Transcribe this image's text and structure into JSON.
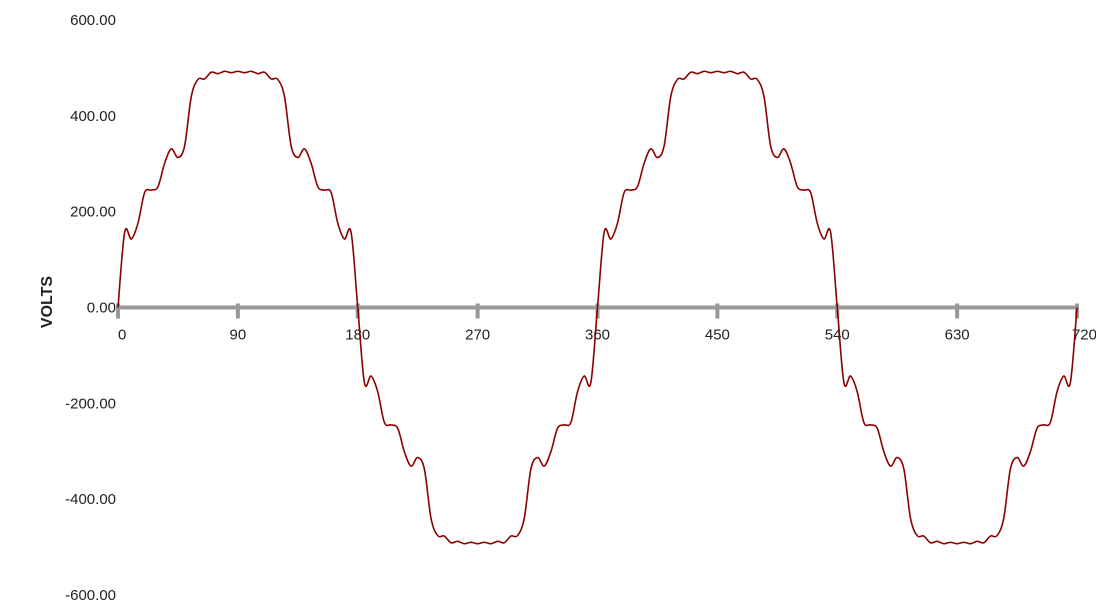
{
  "chart_data": {
    "type": "line",
    "title": "",
    "xlabel": "",
    "ylabel": "VOLTS",
    "xlim": [
      0,
      720
    ],
    "ylim": [
      -600,
      600
    ],
    "x_ticks": [
      "0",
      "90",
      "180",
      "270",
      "360",
      "450",
      "540",
      "630",
      "720"
    ],
    "y_ticks": [
      "600.00",
      "400.00",
      "200.00",
      "0.00",
      "-200.00",
      "-400.00",
      "-600.00"
    ],
    "grid": false,
    "legend": "none",
    "colors": {
      "series": "#8b0000",
      "axis": "#999999",
      "text": "#222222"
    },
    "series": [
      {
        "name": "",
        "x": [
          0,
          5,
          10,
          15,
          20,
          25,
          30,
          35,
          40,
          45,
          50,
          55,
          60,
          65,
          70,
          75,
          80,
          85,
          90,
          95,
          100,
          105,
          110,
          115,
          120,
          125,
          130,
          135,
          140,
          145,
          150,
          155,
          160,
          165,
          170,
          175,
          180,
          185,
          190,
          195,
          200,
          205,
          210,
          215,
          220,
          225,
          230,
          235,
          240,
          245,
          250,
          255,
          260,
          265,
          270,
          275,
          280,
          285,
          290,
          295,
          300,
          305,
          310,
          315,
          320,
          325,
          330,
          335,
          340,
          345,
          350,
          355,
          360,
          365,
          370,
          375,
          380,
          385,
          390,
          395,
          400,
          405,
          410,
          415,
          420,
          425,
          430,
          435,
          440,
          445,
          450,
          455,
          460,
          465,
          470,
          475,
          480,
          485,
          490,
          495,
          500,
          505,
          510,
          515,
          520,
          525,
          530,
          535,
          540,
          545,
          550,
          555,
          560,
          565,
          570,
          575,
          580,
          585,
          590,
          595,
          600,
          605,
          610,
          615,
          620,
          625,
          630,
          635,
          640,
          645,
          650,
          655,
          660,
          665,
          670,
          675,
          680,
          685,
          690,
          695,
          700,
          705,
          710,
          715,
          720
        ],
        "y": [
          0,
          157,
          143,
          176,
          240,
          245,
          252,
          301,
          331,
          313,
          337,
          440,
          476,
          477,
          491,
          488,
          493,
          490,
          493,
          490,
          493,
          488,
          491,
          477,
          476,
          440,
          337,
          313,
          331,
          301,
          252,
          245,
          240,
          176,
          143,
          157,
          0,
          -157,
          -143,
          -176,
          -240,
          -245,
          -252,
          -301,
          -331,
          -313,
          -337,
          -440,
          -476,
          -477,
          -491,
          -488,
          -493,
          -490,
          -493,
          -490,
          -493,
          -488,
          -491,
          -477,
          -476,
          -440,
          -337,
          -313,
          -331,
          -301,
          -252,
          -245,
          -240,
          -176,
          -143,
          -157,
          0,
          157,
          143,
          176,
          240,
          245,
          252,
          301,
          331,
          313,
          337,
          440,
          476,
          477,
          491,
          488,
          493,
          490,
          493,
          490,
          493,
          488,
          491,
          477,
          476,
          440,
          337,
          313,
          331,
          301,
          252,
          245,
          240,
          176,
          143,
          157,
          0,
          -157,
          -143,
          -176,
          -240,
          -245,
          -252,
          -301,
          -331,
          -313,
          -337,
          -440,
          -476,
          -477,
          -491,
          -488,
          -493,
          -490,
          -493,
          -490,
          -493,
          -488,
          -491,
          -477,
          -476,
          -440,
          -337,
          -313,
          -331,
          -301,
          -252,
          -245,
          -240,
          -176,
          -143,
          -157,
          0
        ]
      }
    ]
  }
}
